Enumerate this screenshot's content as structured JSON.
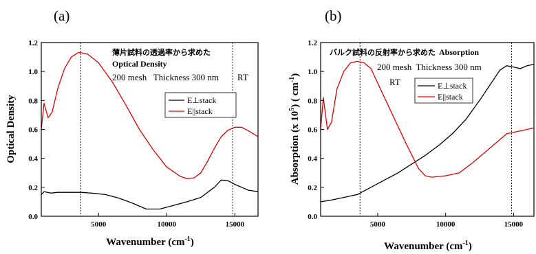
{
  "panels": [
    {
      "label": "(a)"
    },
    {
      "label": "(b)"
    }
  ],
  "chart_data": [
    {
      "type": "line",
      "title": "薄片試料の透過率から求めた",
      "subtitle": "Optical Density",
      "annotations": [
        "200 mesh   Thickness 300 nm",
        "RT"
      ],
      "xlabel": "Wavenumber (cm",
      "xlabel_sup": "-1",
      "xlabel_tail": ")",
      "ylabel": "Optical Density",
      "xlim": [
        800,
        16700
      ],
      "ylim": [
        0,
        1.2
      ],
      "xticks": [
        5000,
        10000,
        15000
      ],
      "xtick_labels": [
        "5000",
        "10000",
        "15000"
      ],
      "yticks": [
        0.0,
        0.2,
        0.4,
        0.6,
        0.8,
        1.0,
        1.2
      ],
      "ytick_labels": [
        "0.0",
        "0.2",
        "0.4",
        "0.6",
        "0.8",
        "1.0",
        "1.2"
      ],
      "vlines": [
        3700,
        14850
      ],
      "legend_position": "right",
      "series": [
        {
          "name": "E⊥stack",
          "color": "#000000",
          "x": [
            800,
            1000,
            1500,
            2000,
            2500,
            3000,
            3700,
            4500,
            5500,
            6500,
            7500,
            8500,
            9500,
            10500,
            11500,
            12500,
            13500,
            14000,
            14500,
            15000,
            15500,
            16000,
            16700
          ],
          "y": [
            0.15,
            0.17,
            0.16,
            0.165,
            0.165,
            0.165,
            0.165,
            0.16,
            0.15,
            0.125,
            0.09,
            0.05,
            0.05,
            0.075,
            0.1,
            0.13,
            0.2,
            0.25,
            0.245,
            0.22,
            0.2,
            0.18,
            0.17
          ]
        },
        {
          "name": "E||stack",
          "color": "#e00000",
          "x": [
            800,
            1000,
            1300,
            1600,
            2000,
            2500,
            3000,
            3500,
            3700,
            4200,
            5000,
            6000,
            7000,
            8000,
            9000,
            10000,
            11000,
            11500,
            12000,
            12500,
            13000,
            13500,
            14000,
            14500,
            15000,
            15500,
            16000,
            16700
          ],
          "y": [
            0.6,
            0.78,
            0.68,
            0.72,
            0.88,
            1.02,
            1.1,
            1.13,
            1.13,
            1.12,
            1.06,
            0.93,
            0.77,
            0.6,
            0.46,
            0.34,
            0.275,
            0.26,
            0.265,
            0.3,
            0.38,
            0.47,
            0.55,
            0.595,
            0.615,
            0.615,
            0.59,
            0.55
          ]
        }
      ]
    },
    {
      "type": "line",
      "title": "バルク試料の反射率から求めた",
      "subtitle": "Absorption",
      "annotations": [
        "200 mesh  Thickness 300 nm",
        "RT"
      ],
      "xlabel": "Wavenumber (cm",
      "xlabel_sup": "-1",
      "xlabel_tail": ")",
      "ylabel": "Absorption (x 10",
      "ylabel_sup": "5",
      "ylabel_mid": ") ( cm",
      "ylabel_sup2": "-1",
      "ylabel_tail": ")",
      "xlim": [
        800,
        16500
      ],
      "ylim": [
        0,
        1.2
      ],
      "xticks": [
        5000,
        10000,
        15000
      ],
      "xtick_labels": [
        "5000",
        "10000",
        "15000"
      ],
      "yticks": [
        0.0,
        0.2,
        0.4,
        0.6,
        0.8,
        1.0,
        1.2
      ],
      "ytick_labels": [
        "0.0",
        "0.2",
        "0.4",
        "0.6",
        "0.8",
        "1.0",
        "1.2"
      ],
      "vlines": [
        3700,
        14850
      ],
      "legend_position": "right",
      "series": [
        {
          "name": "E⊥stack",
          "color": "#000000",
          "x": [
            800,
            1500,
            2500,
            3500,
            4500,
            5500,
            6500,
            7500,
            8500,
            9500,
            10500,
            11500,
            12500,
            13500,
            14000,
            14500,
            15000,
            15500,
            16000,
            16500
          ],
          "y": [
            0.1,
            0.11,
            0.13,
            0.15,
            0.2,
            0.25,
            0.3,
            0.36,
            0.42,
            0.49,
            0.57,
            0.67,
            0.8,
            0.94,
            1.01,
            1.04,
            1.03,
            1.02,
            1.04,
            1.05
          ]
        },
        {
          "name": "E||stack",
          "color": "#e00000",
          "x": [
            800,
            1000,
            1300,
            1600,
            2000,
            2500,
            3000,
            3500,
            4000,
            4500,
            5000,
            6000,
            7000,
            8000,
            8500,
            9000,
            10000,
            11000,
            12000,
            13000,
            14000,
            14500,
            15000,
            15500,
            16000,
            16500
          ],
          "y": [
            0.6,
            0.82,
            0.6,
            0.65,
            0.88,
            1.0,
            1.06,
            1.07,
            1.06,
            1.02,
            0.92,
            0.72,
            0.52,
            0.33,
            0.28,
            0.27,
            0.28,
            0.3,
            0.37,
            0.45,
            0.53,
            0.57,
            0.58,
            0.59,
            0.6,
            0.61
          ]
        }
      ]
    }
  ]
}
